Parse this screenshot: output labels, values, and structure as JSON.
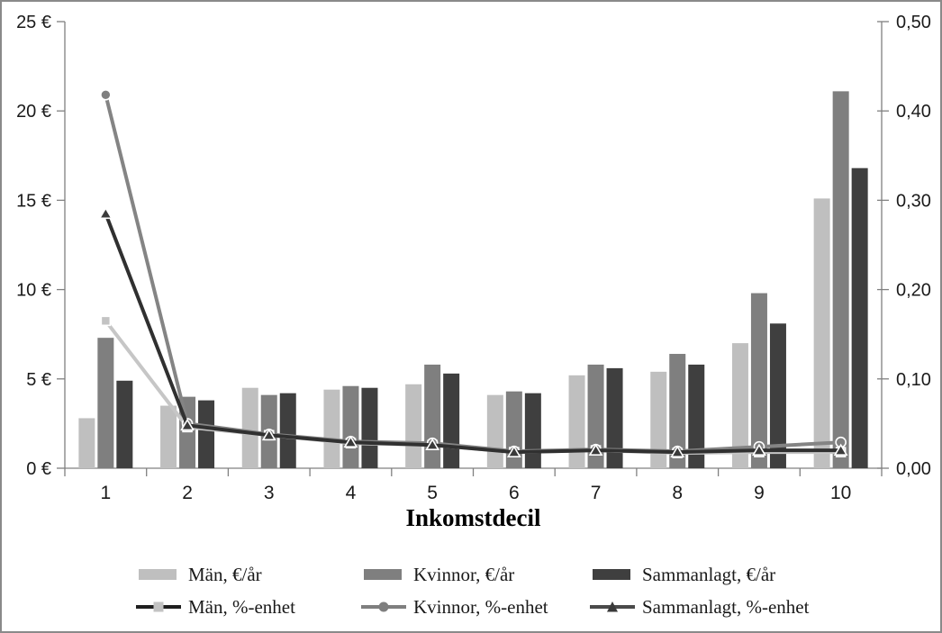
{
  "chart_data": {
    "type": "combo-bar-line",
    "title": "",
    "xlabel": "Inkomstdecil",
    "categories": [
      "1",
      "2",
      "3",
      "4",
      "5",
      "6",
      "7",
      "8",
      "9",
      "10"
    ],
    "left_axis": {
      "ticks": [
        "0 €",
        "5 €",
        "10 €",
        "15 €",
        "20 €",
        "25 €"
      ],
      "min": 0,
      "max": 25,
      "unit": "€/år"
    },
    "right_axis": {
      "ticks": [
        "0,00",
        "0,10",
        "0,20",
        "0,30",
        "0,40",
        "0,50"
      ],
      "min": 0,
      "max": 0.5,
      "unit": "%-enhet"
    },
    "grid": false,
    "bar_series": [
      {
        "name": "Män, €/år",
        "color": "#bfbfbf",
        "values": [
          2.8,
          3.5,
          4.5,
          4.4,
          4.7,
          4.1,
          5.2,
          5.4,
          7.0,
          15.1
        ]
      },
      {
        "name": "Kvinnor, €/år",
        "color": "#7f7f7f",
        "values": [
          7.3,
          4.0,
          4.1,
          4.6,
          5.8,
          4.3,
          5.8,
          6.4,
          9.8,
          21.1
        ]
      },
      {
        "name": "Sammanlagt, €/år",
        "color": "#3f3f3f",
        "values": [
          4.9,
          3.8,
          4.2,
          4.5,
          5.3,
          4.2,
          5.6,
          5.8,
          8.1,
          16.8
        ]
      }
    ],
    "line_series": [
      {
        "name": "Män, %-enhet",
        "axis": "right",
        "line_color": "#c6c6c6",
        "marker": "square",
        "marker_color": "#c3c3c3",
        "values": [
          0.165,
          0.046,
          0.037,
          0.028,
          0.026,
          0.018,
          0.02,
          0.017,
          0.018,
          0.018
        ]
      },
      {
        "name": "Kvinnor, %-enhet",
        "axis": "right",
        "line_color": "#848484",
        "marker": "circle",
        "marker_color": "#7f7f7f",
        "values": [
          0.418,
          0.05,
          0.038,
          0.03,
          0.028,
          0.019,
          0.021,
          0.019,
          0.024,
          0.029
        ]
      },
      {
        "name": "Sammanlagt, %-enhet",
        "axis": "right",
        "line_color": "#303030",
        "marker": "triangle",
        "marker_color": "#3a3a3a",
        "values": [
          0.285,
          0.048,
          0.037,
          0.029,
          0.026,
          0.018,
          0.02,
          0.018,
          0.02,
          0.02
        ]
      }
    ],
    "legend": {
      "position": "bottom",
      "rows": [
        [
          {
            "label": "Män, €/år",
            "swatch": "bar",
            "color": "#bfbfbf"
          },
          {
            "label": "Kvinnor, €/år",
            "swatch": "bar",
            "color": "#7f7f7f"
          },
          {
            "label": "Sammanlagt, €/år",
            "swatch": "bar",
            "color": "#3f3f3f"
          }
        ],
        [
          {
            "label": "Män, %-enhet",
            "swatch": "line",
            "line_color": "#1f1f1f",
            "marker": "square",
            "marker_color": "#c3c3c3"
          },
          {
            "label": "Kvinnor, %-enhet",
            "swatch": "line",
            "line_color": "#7f7f7f",
            "marker": "circle",
            "marker_color": "#7f7f7f"
          },
          {
            "label": "Sammanlagt, %-enhet",
            "swatch": "line",
            "line_color": "#4a4a4a",
            "marker": "triangle",
            "marker_color": "#3a3a3a"
          }
        ]
      ]
    },
    "axis_color": "#808080",
    "tick_label_color": "#1a1a1a"
  }
}
